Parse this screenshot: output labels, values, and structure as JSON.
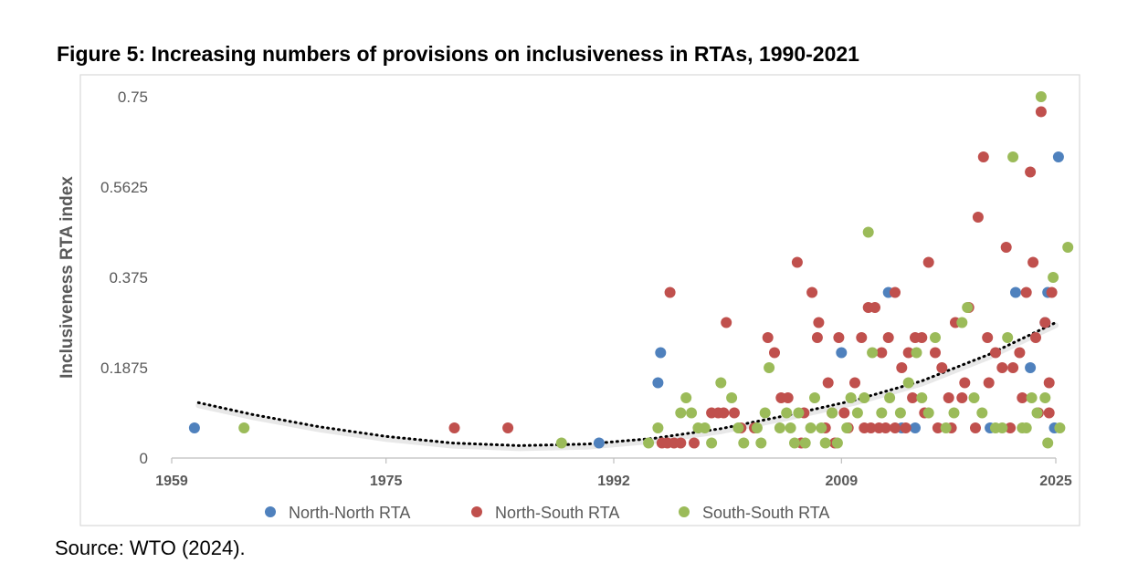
{
  "title": "Figure 5: Increasing numbers of provisions on inclusiveness in RTAs, 1990-2021",
  "source": "Source: WTO (2024).",
  "chart_data": {
    "type": "scatter",
    "ylabel": "Inclusiveness RTA index",
    "xlabel": "",
    "xlim": [
      1959,
      2025
    ],
    "ylim": [
      0,
      0.75
    ],
    "x_ticks": [
      "1959",
      "1975",
      "1992",
      "2009",
      "2025"
    ],
    "y_ticks": [
      "0",
      "0.1875",
      "0.375",
      "0.5625",
      "0.75"
    ],
    "grid": false,
    "legend_position": "bottom",
    "colors": {
      "North-North RTA": "#4f81bd",
      "North-South RTA": "#c0504d",
      "South-South RTA": "#9bbb59",
      "trend": "#000000"
    },
    "series": [
      {
        "name": "North-North RTA",
        "points": [
          [
            1960.7,
            0.0625
          ],
          [
            1990.9,
            0.03125
          ],
          [
            1995.3,
            0.15625
          ],
          [
            1995.5,
            0.21875
          ],
          [
            2009.0,
            0.21875
          ],
          [
            2012.5,
            0.34375
          ],
          [
            2013.5,
            0.0625
          ],
          [
            2014.5,
            0.0625
          ],
          [
            2022.0,
            0.34375
          ],
          [
            2023.1,
            0.1875
          ],
          [
            2024.4,
            0.34375
          ],
          [
            2024.2,
            0.28125
          ],
          [
            2025.2,
            0.625
          ],
          [
            2024.9,
            0.0625
          ],
          [
            2020.1,
            0.0625
          ]
        ]
      },
      {
        "name": "North-South RTA",
        "points": [
          [
            1980.1,
            0.0625
          ],
          [
            1984.1,
            0.0625
          ],
          [
            1996.2,
            0.34375
          ],
          [
            1995.6,
            0.03125
          ],
          [
            1996.0,
            0.03125
          ],
          [
            1996.5,
            0.03125
          ],
          [
            1997.0,
            0.03125
          ],
          [
            1998.0,
            0.03125
          ],
          [
            1999.3,
            0.09375
          ],
          [
            1999.8,
            0.09375
          ],
          [
            2000.2,
            0.09375
          ],
          [
            2000.4,
            0.28125
          ],
          [
            2001.0,
            0.09375
          ],
          [
            2001.5,
            0.0625
          ],
          [
            2002.5,
            0.0625
          ],
          [
            2003.5,
            0.25
          ],
          [
            2004.0,
            0.21875
          ],
          [
            2004.5,
            0.125
          ],
          [
            2005.0,
            0.125
          ],
          [
            2005.7,
            0.40625
          ],
          [
            2006.2,
            0.09375
          ],
          [
            2006.8,
            0.34375
          ],
          [
            2007.3,
            0.28125
          ],
          [
            2007.2,
            0.25
          ],
          [
            2008.0,
            0.15625
          ],
          [
            2008.3,
            0.09375
          ],
          [
            2008.8,
            0.25
          ],
          [
            2009.2,
            0.09375
          ],
          [
            2009.5,
            0.0625
          ],
          [
            2010.0,
            0.15625
          ],
          [
            2010.5,
            0.25
          ],
          [
            2011.0,
            0.3125
          ],
          [
            2011.5,
            0.3125
          ],
          [
            2012.0,
            0.21875
          ],
          [
            2012.5,
            0.25
          ],
          [
            2013.0,
            0.34375
          ],
          [
            2013.5,
            0.1875
          ],
          [
            2014.0,
            0.21875
          ],
          [
            2014.5,
            0.25
          ],
          [
            2015.0,
            0.25
          ],
          [
            2015.5,
            0.40625
          ],
          [
            2016.0,
            0.21875
          ],
          [
            2016.5,
            0.1875
          ],
          [
            2017.0,
            0.125
          ],
          [
            2017.5,
            0.28125
          ],
          [
            2018.0,
            0.125
          ],
          [
            2018.5,
            0.3125
          ],
          [
            2019.2,
            0.5
          ],
          [
            2019.6,
            0.625
          ],
          [
            2019.9,
            0.25
          ],
          [
            2020.5,
            0.21875
          ],
          [
            2021.0,
            0.1875
          ],
          [
            2021.3,
            0.4375
          ],
          [
            2021.6,
            0.0625
          ],
          [
            2022.3,
            0.21875
          ],
          [
            2022.8,
            0.34375
          ],
          [
            2023.1,
            0.59375
          ],
          [
            2023.3,
            0.40625
          ],
          [
            2023.5,
            0.25
          ],
          [
            2023.9,
            0.71875
          ],
          [
            2024.2,
            0.28125
          ],
          [
            2024.5,
            0.15625
          ],
          [
            2024.7,
            0.34375
          ],
          [
            2024.5,
            0.09375
          ],
          [
            2010.7,
            0.0625
          ],
          [
            2011.2,
            0.0625
          ],
          [
            2011.8,
            0.0625
          ],
          [
            2012.3,
            0.0625
          ],
          [
            2013.0,
            0.0625
          ],
          [
            2013.8,
            0.0625
          ],
          [
            2014.3,
            0.125
          ],
          [
            2015.2,
            0.09375
          ],
          [
            2016.2,
            0.0625
          ],
          [
            2017.2,
            0.0625
          ],
          [
            2018.2,
            0.15625
          ],
          [
            2019.0,
            0.0625
          ],
          [
            2020.0,
            0.15625
          ],
          [
            2021.8,
            0.1875
          ],
          [
            2022.5,
            0.125
          ],
          [
            2023.7,
            0.09375
          ],
          [
            2006.0,
            0.03125
          ],
          [
            2007.8,
            0.0625
          ],
          [
            2008.5,
            0.03125
          ]
        ]
      },
      {
        "name": "South-South RTA",
        "points": [
          [
            1964.4,
            0.0625
          ],
          [
            1988.1,
            0.03125
          ],
          [
            1994.6,
            0.03125
          ],
          [
            1995.3,
            0.0625
          ],
          [
            1997.0,
            0.09375
          ],
          [
            1997.4,
            0.125
          ],
          [
            1997.8,
            0.09375
          ],
          [
            1998.3,
            0.0625
          ],
          [
            1998.8,
            0.0625
          ],
          [
            1999.3,
            0.03125
          ],
          [
            2000.0,
            0.15625
          ],
          [
            2000.8,
            0.125
          ],
          [
            2001.3,
            0.0625
          ],
          [
            2001.7,
            0.03125
          ],
          [
            2002.7,
            0.0625
          ],
          [
            2003.0,
            0.03125
          ],
          [
            2003.3,
            0.09375
          ],
          [
            2003.6,
            0.1875
          ],
          [
            2004.4,
            0.0625
          ],
          [
            2004.9,
            0.09375
          ],
          [
            2005.2,
            0.0625
          ],
          [
            2005.5,
            0.03125
          ],
          [
            2005.8,
            0.09375
          ],
          [
            2006.3,
            0.03125
          ],
          [
            2006.7,
            0.0625
          ],
          [
            2007.0,
            0.125
          ],
          [
            2007.5,
            0.0625
          ],
          [
            2007.8,
            0.03125
          ],
          [
            2008.3,
            0.09375
          ],
          [
            2008.7,
            0.03125
          ],
          [
            2009.4,
            0.0625
          ],
          [
            2009.7,
            0.125
          ],
          [
            2010.2,
            0.09375
          ],
          [
            2010.7,
            0.125
          ],
          [
            2011.0,
            0.46875
          ],
          [
            2011.3,
            0.21875
          ],
          [
            2012.0,
            0.09375
          ],
          [
            2012.6,
            0.125
          ],
          [
            2013.4,
            0.09375
          ],
          [
            2014.0,
            0.15625
          ],
          [
            2014.6,
            0.21875
          ],
          [
            2015.0,
            0.125
          ],
          [
            2015.5,
            0.09375
          ],
          [
            2016.0,
            0.25
          ],
          [
            2016.8,
            0.0625
          ],
          [
            2017.4,
            0.09375
          ],
          [
            2018.0,
            0.28125
          ],
          [
            2018.4,
            0.3125
          ],
          [
            2018.9,
            0.125
          ],
          [
            2019.5,
            0.09375
          ],
          [
            2020.5,
            0.0625
          ],
          [
            2021.4,
            0.25
          ],
          [
            2021.8,
            0.625
          ],
          [
            2022.5,
            0.0625
          ],
          [
            2022.8,
            0.0625
          ],
          [
            2023.2,
            0.125
          ],
          [
            2023.6,
            0.09375
          ],
          [
            2023.9,
            0.75
          ],
          [
            2024.2,
            0.125
          ],
          [
            2024.4,
            0.03125
          ],
          [
            2024.8,
            0.375
          ],
          [
            2025.3,
            0.0625
          ],
          [
            2025.9,
            0.4375
          ],
          [
            2021.0,
            0.0625
          ]
        ]
      }
    ],
    "trend": {
      "type": "polynomial",
      "points": [
        [
          1961.0,
          0.115
        ],
        [
          1965.0,
          0.0905
        ],
        [
          1970.0,
          0.065
        ],
        [
          1975.0,
          0.0448
        ],
        [
          1980.0,
          0.0311
        ],
        [
          1985.0,
          0.0258
        ],
        [
          1990.0,
          0.029
        ],
        [
          1995.0,
          0.041
        ],
        [
          2000.0,
          0.061
        ],
        [
          2005.0,
          0.089
        ],
        [
          2010.0,
          0.12
        ],
        [
          2015.0,
          0.16
        ],
        [
          2020.0,
          0.215
        ],
        [
          2025.0,
          0.2813
        ]
      ]
    }
  }
}
